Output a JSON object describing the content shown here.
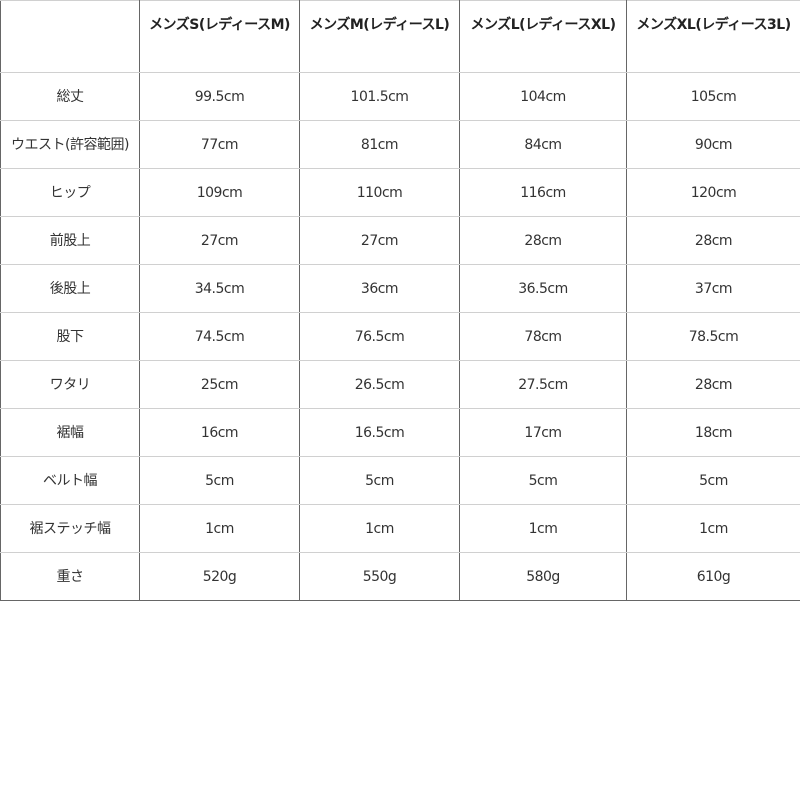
{
  "table": {
    "headers": [
      "",
      "メンズS(レディースM)",
      "メンズM(レディースL)",
      "メンズL(レディースXL)",
      "メンズXL(レディース3L)"
    ],
    "rows": [
      [
        "総丈",
        "99.5cm",
        "101.5cm",
        "104cm",
        "105cm"
      ],
      [
        "ウエスト(許容範囲)",
        "77cm",
        "81cm",
        "84cm",
        "90cm"
      ],
      [
        "ヒップ",
        "109cm",
        "110cm",
        "116cm",
        "120cm"
      ],
      [
        "前股上",
        "27cm",
        "27cm",
        "28cm",
        "28cm"
      ],
      [
        "後股上",
        "34.5cm",
        "36cm",
        "36.5cm",
        "37cm"
      ],
      [
        "股下",
        "74.5cm",
        "76.5cm",
        "78cm",
        "78.5cm"
      ],
      [
        "ワタリ",
        "25cm",
        "26.5cm",
        "27.5cm",
        "28cm"
      ],
      [
        "裾幅",
        "16cm",
        "16.5cm",
        "17cm",
        "18cm"
      ],
      [
        "ベルト幅",
        "5cm",
        "5cm",
        "5cm",
        "5cm"
      ],
      [
        "裾ステッチ幅",
        "1cm",
        "1cm",
        "1cm",
        "1cm"
      ],
      [
        "重さ",
        "520g",
        "550g",
        "580g",
        "610g"
      ]
    ]
  }
}
